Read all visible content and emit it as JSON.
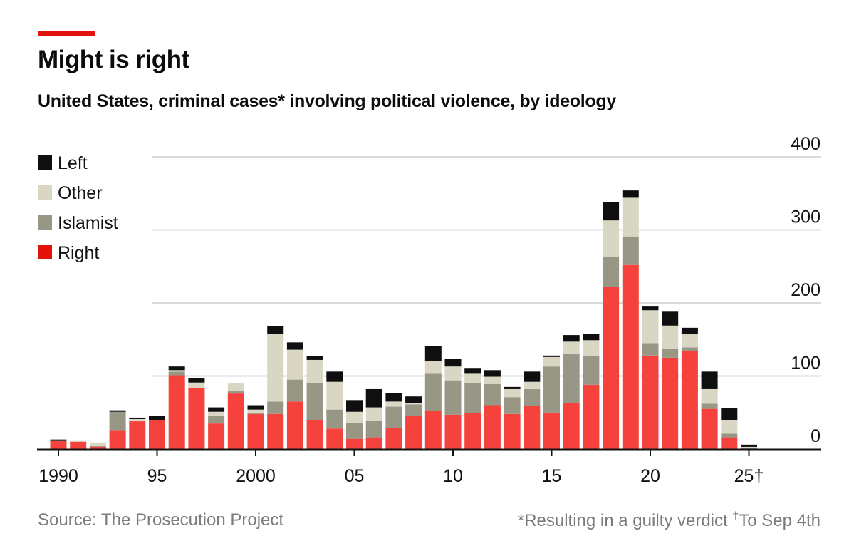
{
  "title": "Might is right",
  "subtitle": "United States, criminal cases* involving political violence, by ideology",
  "source": "Source: The Prosecution Project",
  "footnote_star": "*Resulting in a guilty verdict",
  "footnote_dagger_mark": "†",
  "footnote_dagger": "To Sep 4th",
  "colors": {
    "Right": "#f6423c",
    "Islamist": "#989684",
    "Other": "#d9d6c4",
    "Left": "#0f0f0f",
    "legend_right": "#e3120b",
    "accent": "#e3120b"
  },
  "chart_data": {
    "type": "bar",
    "stacked": true,
    "title": "Might is right",
    "subtitle": "United States, criminal cases* involving political violence, by ideology",
    "xlabel": "",
    "ylabel": "",
    "ylim": [
      0,
      400
    ],
    "yticks": [
      0,
      100,
      200,
      300,
      400
    ],
    "grid": true,
    "legend_placement": "top-left",
    "legend": [
      "Left",
      "Other",
      "Islamist",
      "Right"
    ],
    "xtick_labels": [
      {
        "year": 1990,
        "label": "1990"
      },
      {
        "year": 1995,
        "label": "95"
      },
      {
        "year": 2000,
        "label": "2000"
      },
      {
        "year": 2005,
        "label": "05"
      },
      {
        "year": 2010,
        "label": "10"
      },
      {
        "year": 2015,
        "label": "15"
      },
      {
        "year": 2020,
        "label": "20"
      },
      {
        "year": 2025,
        "label": "25†"
      }
    ],
    "categories": [
      1990,
      1991,
      1992,
      1993,
      1994,
      1995,
      1996,
      1997,
      1998,
      1999,
      2000,
      2001,
      2002,
      2003,
      2004,
      2005,
      2006,
      2007,
      2008,
      2009,
      2010,
      2011,
      2012,
      2013,
      2014,
      2015,
      2016,
      2017,
      2018,
      2019,
      2020,
      2021,
      2022,
      2023,
      2024,
      2025
    ],
    "series": [
      {
        "name": "Right",
        "values": [
          11,
          10,
          3,
          26,
          38,
          40,
          101,
          83,
          35,
          76,
          48,
          48,
          65,
          40,
          28,
          14,
          16,
          29,
          45,
          52,
          47,
          49,
          60,
          48,
          59,
          50,
          63,
          88,
          222,
          252,
          128,
          125,
          134,
          55,
          16,
          0
        ]
      },
      {
        "name": "Islamist",
        "values": [
          1,
          0,
          1,
          25,
          0,
          0,
          5,
          0,
          11,
          3,
          1,
          17,
          30,
          50,
          26,
          22,
          23,
          29,
          16,
          52,
          47,
          41,
          29,
          23,
          23,
          63,
          67,
          40,
          41,
          39,
          17,
          12,
          5,
          7,
          5,
          1
        ]
      },
      {
        "name": "Other",
        "values": [
          0,
          2,
          5,
          0,
          3,
          0,
          2,
          8,
          5,
          11,
          5,
          93,
          41,
          32,
          38,
          15,
          18,
          7,
          2,
          16,
          19,
          14,
          10,
          11,
          10,
          13,
          17,
          21,
          50,
          53,
          45,
          32,
          19,
          20,
          19,
          2
        ]
      },
      {
        "name": "Left",
        "values": [
          1,
          0,
          0,
          2,
          2,
          5,
          5,
          6,
          6,
          0,
          6,
          10,
          10,
          5,
          14,
          16,
          25,
          12,
          9,
          21,
          10,
          7,
          9,
          3,
          14,
          2,
          9,
          9,
          25,
          10,
          6,
          19,
          8,
          24,
          16,
          3
        ]
      }
    ]
  }
}
